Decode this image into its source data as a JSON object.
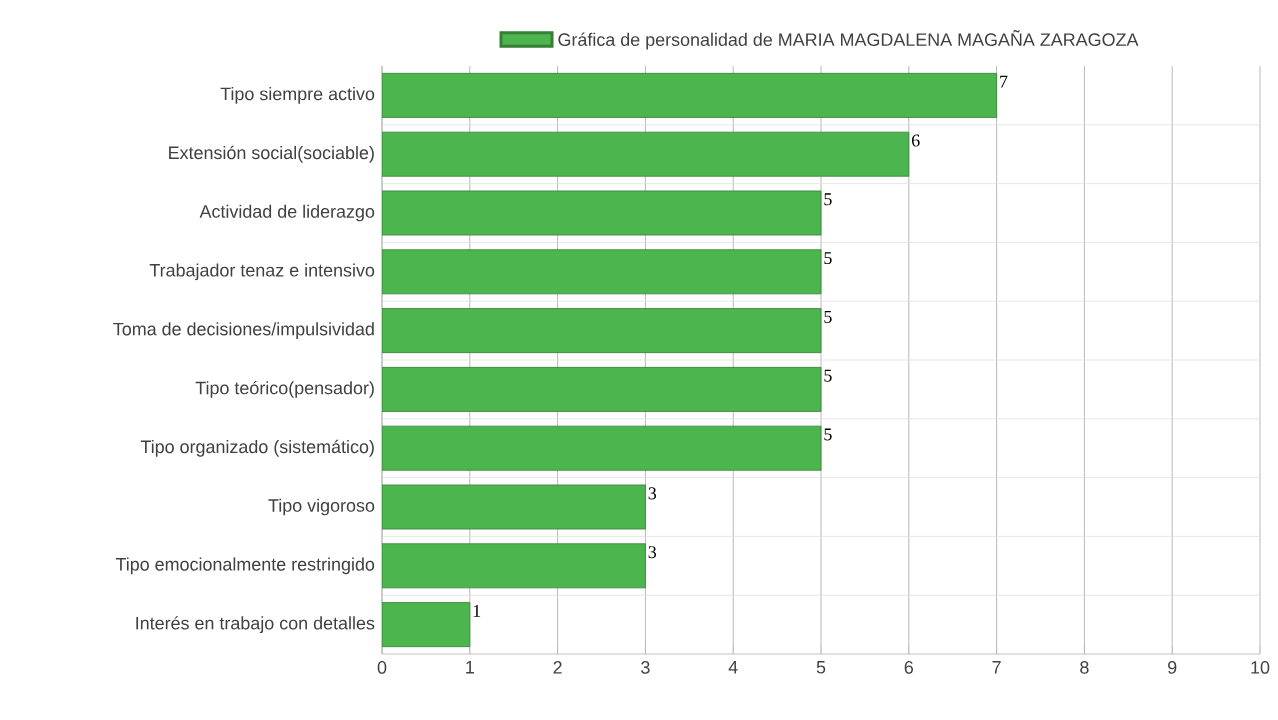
{
  "chart_data": {
    "type": "bar",
    "orientation": "horizontal",
    "categories": [
      "Tipo siempre activo",
      "Extensión social(sociable)",
      "Actividad de liderazgo",
      "Trabajador tenaz e intensivo",
      "Toma de decisiones/impulsividad",
      "Tipo teórico(pensador)",
      "Tipo organizado (sistemático)",
      "Tipo vigoroso",
      "Tipo emocionalmente restringido",
      "Interés en trabajo con detalles"
    ],
    "series": [
      {
        "name": "Gráfica de personalidad de MARIA MAGDALENA MAGAÑA ZARAGOZA",
        "color": "#4db54d",
        "values": [
          7,
          6,
          5,
          5,
          5,
          5,
          5,
          3,
          3,
          1
        ]
      }
    ],
    "xlim": [
      0,
      10
    ],
    "xticks": [
      0,
      1,
      2,
      3,
      4,
      5,
      6,
      7,
      8,
      9,
      10
    ],
    "grid": true,
    "legend": "top",
    "data_labels": true
  }
}
